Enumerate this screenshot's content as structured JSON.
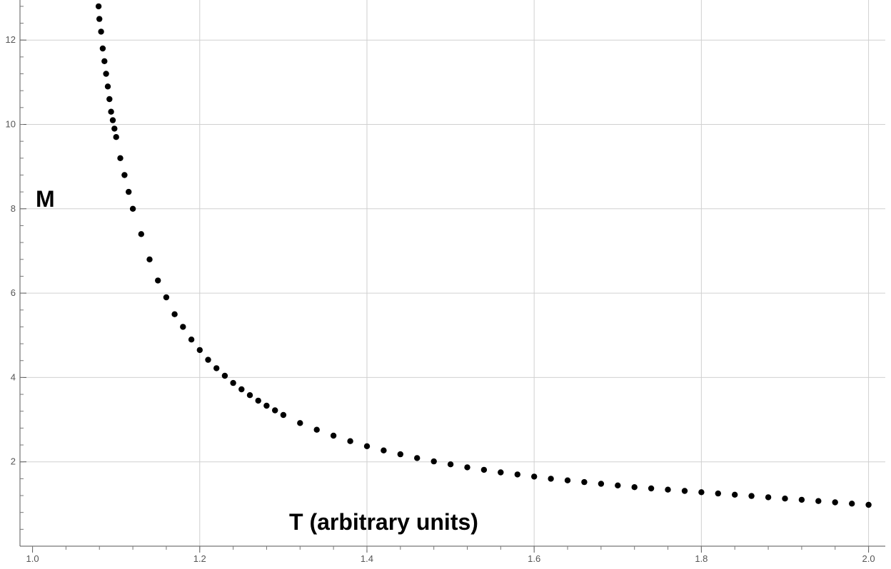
{
  "chart_data": {
    "type": "scatter",
    "title": "",
    "xlabel": "T (arbitrary units)",
    "ylabel": "M",
    "xlim": [
      0.985,
      2.02
    ],
    "ylim": [
      0,
      12.95
    ],
    "xticks": [
      "1.0",
      "1.2",
      "1.4",
      "1.6",
      "1.8",
      "2.0"
    ],
    "yticks": [
      "2",
      "4",
      "6",
      "8",
      "10",
      "12"
    ],
    "grid": true,
    "marker_color": "#000000",
    "series": [
      {
        "x": [
          1.079,
          1.08,
          1.082,
          1.084,
          1.086,
          1.088,
          1.09,
          1.092,
          1.094,
          1.096,
          1.098,
          1.1,
          1.105,
          1.11,
          1.115,
          1.12,
          1.13,
          1.14,
          1.15,
          1.16,
          1.17,
          1.18,
          1.19,
          1.2,
          1.21,
          1.22,
          1.23,
          1.24,
          1.25,
          1.26,
          1.27,
          1.28,
          1.29,
          1.3,
          1.32,
          1.34,
          1.36,
          1.38,
          1.4,
          1.42,
          1.44,
          1.46,
          1.48,
          1.5,
          1.52,
          1.54,
          1.56,
          1.58,
          1.6,
          1.62,
          1.64,
          1.66,
          1.68,
          1.7,
          1.72,
          1.74,
          1.76,
          1.78,
          1.8,
          1.82,
          1.84,
          1.86,
          1.88,
          1.9,
          1.92,
          1.94,
          1.96,
          1.98,
          2.0
        ],
        "y": [
          12.8,
          12.5,
          12.2,
          11.8,
          11.5,
          11.2,
          10.9,
          10.6,
          10.3,
          10.1,
          9.9,
          9.7,
          9.2,
          8.8,
          8.4,
          8.0,
          7.4,
          6.8,
          6.3,
          5.9,
          5.5,
          5.2,
          4.9,
          4.65,
          4.42,
          4.22,
          4.04,
          3.87,
          3.72,
          3.58,
          3.45,
          3.33,
          3.22,
          3.11,
          2.92,
          2.76,
          2.62,
          2.49,
          2.37,
          2.27,
          2.18,
          2.09,
          2.01,
          1.94,
          1.87,
          1.81,
          1.75,
          1.7,
          1.65,
          1.6,
          1.56,
          1.52,
          1.48,
          1.44,
          1.4,
          1.37,
          1.34,
          1.31,
          1.28,
          1.25,
          1.22,
          1.19,
          1.16,
          1.13,
          1.1,
          1.07,
          1.04,
          1.01,
          0.98
        ]
      }
    ]
  }
}
